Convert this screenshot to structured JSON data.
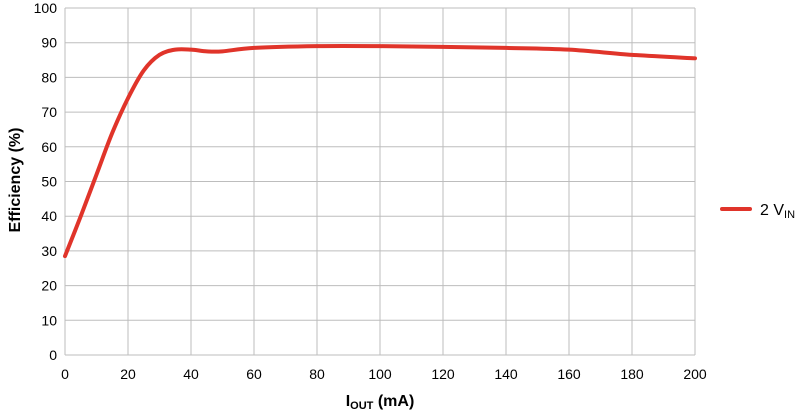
{
  "chart_data": {
    "type": "line",
    "xlabel": "I",
    "xlabel_sub": "OUT",
    "xlabel_unit": " (mA)",
    "ylabel": "Efficiency (%)",
    "xlim": [
      0,
      200
    ],
    "ylim": [
      0,
      100
    ],
    "x_ticks": [
      0,
      20,
      40,
      60,
      80,
      100,
      120,
      140,
      160,
      180,
      200
    ],
    "y_ticks": [
      0,
      10,
      20,
      30,
      40,
      50,
      60,
      70,
      80,
      90,
      100
    ],
    "grid": true,
    "legend_position": "right",
    "series": [
      {
        "name": "2 V",
        "name_sub": "IN",
        "color": "#e0342a",
        "x": [
          0,
          5,
          10,
          15,
          20,
          25,
          30,
          35,
          40,
          45,
          50,
          60,
          80,
          100,
          120,
          140,
          160,
          180,
          200
        ],
        "y": [
          28.5,
          40,
          52,
          64,
          74,
          82,
          86.5,
          88,
          88,
          87.5,
          87.5,
          88.5,
          89,
          89,
          88.8,
          88.5,
          88,
          86.5,
          85.5
        ]
      }
    ]
  }
}
